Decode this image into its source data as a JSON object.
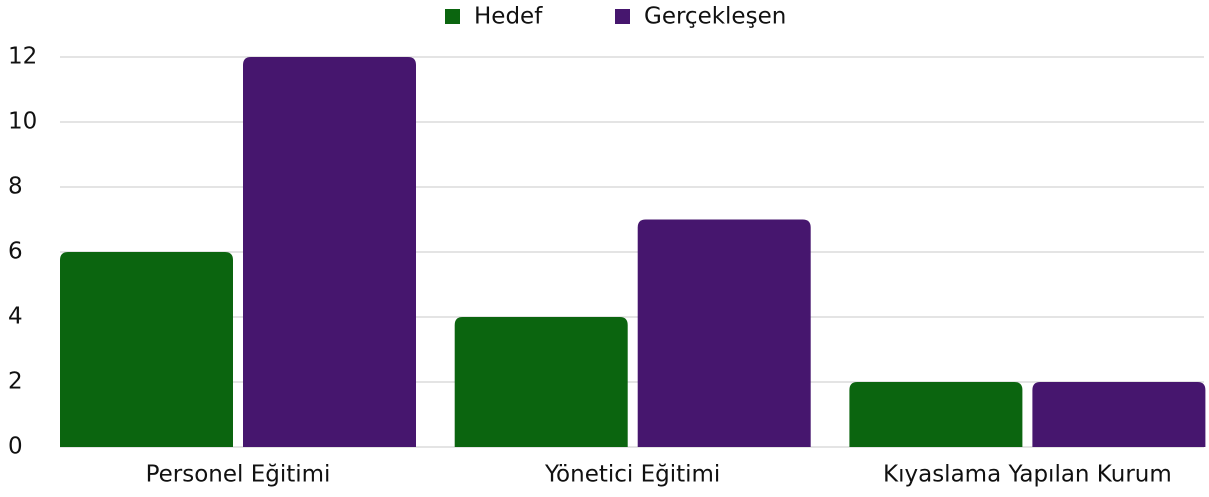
{
  "chart_data": {
    "type": "bar",
    "categories": [
      "Personel Eğitimi",
      "Yönetici Eğitimi",
      "Kıyaslama Yapılan Kurum"
    ],
    "series": [
      {
        "name": "Hedef",
        "color": "#0b650f",
        "values": [
          6,
          4,
          2
        ]
      },
      {
        "name": "Gerçekleşen",
        "color": "#46166e",
        "values": [
          12,
          7,
          2
        ]
      }
    ],
    "ylim": [
      0,
      12
    ],
    "yticks": [
      0,
      2,
      4,
      6,
      8,
      10,
      12
    ],
    "grid": true,
    "legend": "top"
  }
}
